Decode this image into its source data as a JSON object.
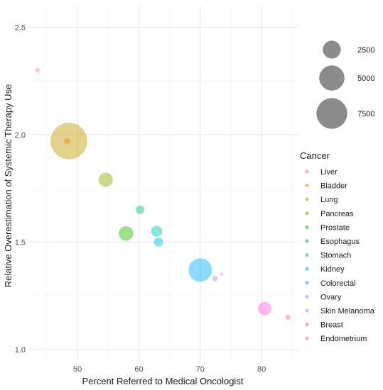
{
  "chart_data": {
    "type": "scatter",
    "xlabel": "Percent Referred to Medical Oncologist",
    "ylabel": "Relative Overestimation of Systemic Therapy Use",
    "xlim": [
      42,
      86
    ],
    "ylim": [
      0.95,
      2.6
    ],
    "x_ticks": [
      "50",
      "60",
      "70",
      "80"
    ],
    "y_ticks": [
      "1.0",
      "1.5",
      "2.0",
      "2.5"
    ],
    "grid": true,
    "legend_placement": "right",
    "size_legend": {
      "entries": [
        {
          "label": "2500",
          "value": 2500
        },
        {
          "label": "5000",
          "value": 5000
        },
        {
          "label": "7500",
          "value": 7500
        }
      ]
    },
    "color_legend": {
      "title": "Cancer",
      "entries": [
        {
          "label": "Liver",
          "color": "#F8766D"
        },
        {
          "label": "Bladder",
          "color": "#E18A00"
        },
        {
          "label": "Lung",
          "color": "#BE9C00"
        },
        {
          "label": "Pancreas",
          "color": "#8CAB00"
        },
        {
          "label": "Prostate",
          "color": "#24B700"
        },
        {
          "label": "Esophagus",
          "color": "#00BE70"
        },
        {
          "label": "Stomach",
          "color": "#00C1AB"
        },
        {
          "label": "Kidney",
          "color": "#00BBDA"
        },
        {
          "label": "Colorectal",
          "color": "#00ACFC"
        },
        {
          "label": "Ovary",
          "color": "#8B93FF"
        },
        {
          "label": "Skin Melanoma",
          "color": "#D575FE"
        },
        {
          "label": "Breast",
          "color": "#F962DD"
        },
        {
          "label": "Endometrium",
          "color": "#FF65AC"
        }
      ]
    },
    "points": [
      {
        "cancer": "Liver",
        "x": 43.5,
        "y": 2.3,
        "size": 150
      },
      {
        "cancer": "Bladder",
        "x": 48.3,
        "y": 1.97,
        "size": 300
      },
      {
        "cancer": "Lung",
        "x": 48.6,
        "y": 1.97,
        "size": 11000
      },
      {
        "cancer": "Pancreas",
        "x": 54.6,
        "y": 1.79,
        "size": 1650
      },
      {
        "cancer": "Prostate",
        "x": 57.9,
        "y": 1.54,
        "size": 1750
      },
      {
        "cancer": "Esophagus",
        "x": 60.2,
        "y": 1.65,
        "size": 600
      },
      {
        "cancer": "Stomach",
        "x": 62.9,
        "y": 1.55,
        "size": 1000
      },
      {
        "cancer": "Kidney",
        "x": 63.2,
        "y": 1.5,
        "size": 700
      },
      {
        "cancer": "Colorectal",
        "x": 70.0,
        "y": 1.37,
        "size": 4500
      },
      {
        "cancer": "Ovary",
        "x": 72.4,
        "y": 1.33,
        "size": 250
      },
      {
        "cancer": "Skin Melanoma",
        "x": 73.5,
        "y": 1.35,
        "size": 60
      },
      {
        "cancer": "Breast",
        "x": 80.5,
        "y": 1.19,
        "size": 1500
      },
      {
        "cancer": "Endometrium",
        "x": 84.3,
        "y": 1.15,
        "size": 200
      }
    ]
  }
}
